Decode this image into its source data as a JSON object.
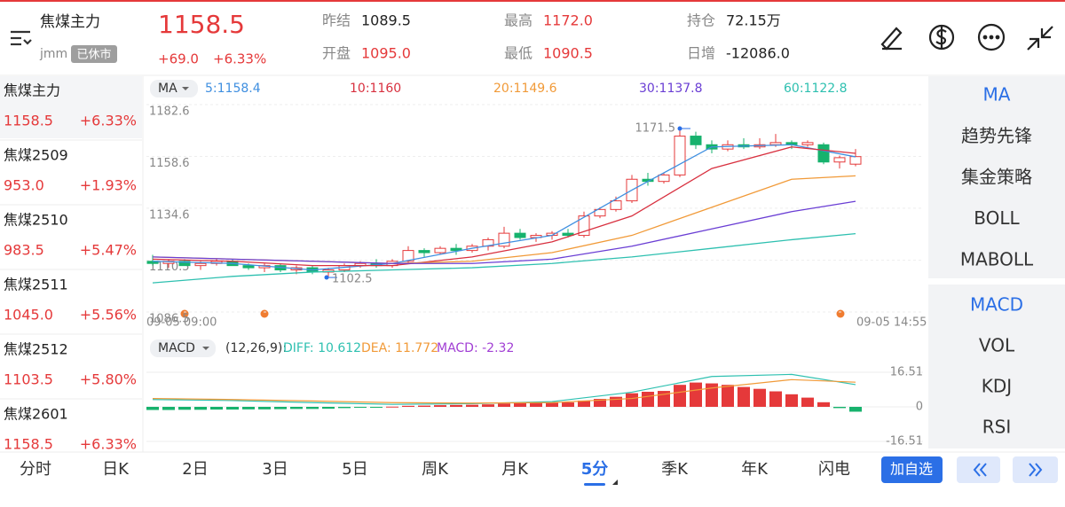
{
  "header": {
    "name": "焦煤主力",
    "code": "jmm",
    "status": "已休市",
    "price": "1158.5",
    "change": "+69.0",
    "change_pct": "+6.33%",
    "stats": [
      {
        "label": "昨结",
        "value": "1089.5"
      },
      {
        "label": "最高",
        "value": "1172.0"
      },
      {
        "label": "持仓",
        "value": "72.15万"
      },
      {
        "label": "开盘",
        "value": "1095.0"
      },
      {
        "label": "最低",
        "value": "1090.5"
      },
      {
        "label": "日增",
        "value": "-12086.0"
      }
    ]
  },
  "contracts": [
    {
      "name": "焦煤主力",
      "price": "1158.5",
      "pct": "+6.33%"
    },
    {
      "name": "焦煤2509",
      "price": "953.0",
      "pct": "+1.93%"
    },
    {
      "name": "焦煤2510",
      "price": "983.5",
      "pct": "+5.47%"
    },
    {
      "name": "焦煤2511",
      "price": "1045.0",
      "pct": "+5.56%"
    },
    {
      "name": "焦煤2512",
      "price": "1103.5",
      "pct": "+5.80%"
    },
    {
      "name": "焦煤2601",
      "price": "1158.5",
      "pct": "+6.33%"
    }
  ],
  "indicators": {
    "main": [
      "MA",
      "趋势先锋",
      "集金策略",
      "BOLL",
      "MABOLL"
    ],
    "sub": [
      "MACD",
      "VOL",
      "KDJ",
      "RSI"
    ]
  },
  "tabs": [
    "分时",
    "日K",
    "2日",
    "3日",
    "5日",
    "周K",
    "月K",
    "5分",
    "季K",
    "年K",
    "闪电"
  ],
  "add_button": "加自选",
  "chart_data": {
    "type": "candlestick",
    "ma_selector": "MA",
    "ma_labels": [
      "5:1158.4",
      "10:1160",
      "20:1149.6",
      "30:1137.8",
      "60:1122.8"
    ],
    "ylim": [
      1086.5,
      1182.6
    ],
    "yticks": [
      1182.6,
      1158.6,
      1134.6,
      1110.5,
      1086.5
    ],
    "start_label": "09-05 09:00",
    "end_label": "09-05 14:55",
    "annotations": [
      {
        "text": "1171.5",
        "value": 1171.5,
        "index": 33
      },
      {
        "text": "1102.5",
        "value": 1102.5,
        "index": 11
      }
    ],
    "candles": [
      {
        "o": 1110,
        "h": 1113,
        "l": 1108,
        "c": 1109
      },
      {
        "o": 1109,
        "h": 1111,
        "l": 1107,
        "c": 1110
      },
      {
        "o": 1110,
        "h": 1111,
        "l": 1108,
        "c": 1108
      },
      {
        "o": 1108,
        "h": 1110,
        "l": 1106,
        "c": 1109
      },
      {
        "o": 1109,
        "h": 1111,
        "l": 1108,
        "c": 1110
      },
      {
        "o": 1110,
        "h": 1111,
        "l": 1108,
        "c": 1108
      },
      {
        "o": 1108,
        "h": 1109,
        "l": 1106,
        "c": 1107
      },
      {
        "o": 1107,
        "h": 1109,
        "l": 1105,
        "c": 1108
      },
      {
        "o": 1108,
        "h": 1109,
        "l": 1105,
        "c": 1106
      },
      {
        "o": 1106,
        "h": 1108,
        "l": 1104,
        "c": 1107
      },
      {
        "o": 1107,
        "h": 1108,
        "l": 1104,
        "c": 1105
      },
      {
        "o": 1105,
        "h": 1107,
        "l": 1102.5,
        "c": 1106
      },
      {
        "o": 1106,
        "h": 1109,
        "l": 1105,
        "c": 1108
      },
      {
        "o": 1108,
        "h": 1110,
        "l": 1107,
        "c": 1109
      },
      {
        "o": 1109,
        "h": 1111,
        "l": 1107,
        "c": 1108
      },
      {
        "o": 1108,
        "h": 1111,
        "l": 1107,
        "c": 1110
      },
      {
        "o": 1110,
        "h": 1117,
        "l": 1109,
        "c": 1115
      },
      {
        "o": 1115,
        "h": 1116,
        "l": 1112,
        "c": 1114
      },
      {
        "o": 1114,
        "h": 1117,
        "l": 1113,
        "c": 1116
      },
      {
        "o": 1116,
        "h": 1118,
        "l": 1113,
        "c": 1115
      },
      {
        "o": 1115,
        "h": 1118,
        "l": 1114,
        "c": 1117
      },
      {
        "o": 1117,
        "h": 1121,
        "l": 1115,
        "c": 1120
      },
      {
        "o": 1117,
        "h": 1126,
        "l": 1116,
        "c": 1123
      },
      {
        "o": 1123,
        "h": 1125,
        "l": 1120,
        "c": 1121
      },
      {
        "o": 1121,
        "h": 1123,
        "l": 1119,
        "c": 1122
      },
      {
        "o": 1122,
        "h": 1124,
        "l": 1120,
        "c": 1123
      },
      {
        "o": 1123,
        "h": 1125,
        "l": 1121,
        "c": 1122
      },
      {
        "o": 1122,
        "h": 1133,
        "l": 1121,
        "c": 1131
      },
      {
        "o": 1131,
        "h": 1135,
        "l": 1130,
        "c": 1134
      },
      {
        "o": 1134,
        "h": 1140,
        "l": 1133,
        "c": 1138
      },
      {
        "o": 1138,
        "h": 1150,
        "l": 1137,
        "c": 1148
      },
      {
        "o": 1148,
        "h": 1151,
        "l": 1145,
        "c": 1147
      },
      {
        "o": 1147,
        "h": 1151,
        "l": 1146,
        "c": 1150
      },
      {
        "o": 1150,
        "h": 1171.5,
        "l": 1149,
        "c": 1168
      },
      {
        "o": 1168,
        "h": 1170,
        "l": 1162,
        "c": 1164
      },
      {
        "o": 1164,
        "h": 1166,
        "l": 1160,
        "c": 1162
      },
      {
        "o": 1162,
        "h": 1166,
        "l": 1161,
        "c": 1164
      },
      {
        "o": 1164,
        "h": 1167,
        "l": 1162,
        "c": 1163
      },
      {
        "o": 1163,
        "h": 1167,
        "l": 1162,
        "c": 1164
      },
      {
        "o": 1164,
        "h": 1169,
        "l": 1163,
        "c": 1165
      },
      {
        "o": 1165,
        "h": 1166,
        "l": 1162,
        "c": 1164
      },
      {
        "o": 1164,
        "h": 1166,
        "l": 1163,
        "c": 1165
      },
      {
        "o": 1164,
        "h": 1165,
        "l": 1155,
        "c": 1156
      },
      {
        "o": 1156,
        "h": 1159,
        "l": 1153,
        "c": 1158
      },
      {
        "o": 1155,
        "h": 1162,
        "l": 1154,
        "c": 1158.5
      }
    ],
    "up_color": "#e5393a",
    "down_color": "#17b26d",
    "ma_x": [
      0,
      5,
      10,
      15,
      20,
      25,
      30,
      35,
      40,
      44
    ],
    "ma": [
      {
        "name": "MA5",
        "color": "#3f8fe0",
        "values": [
          1110,
          1109,
          1106,
          1109,
          1116,
          1122,
          1143,
          1163,
          1164,
          1158.4
        ]
      },
      {
        "name": "MA10",
        "color": "#d8303f",
        "values": [
          1111,
          1110,
          1108,
          1108,
          1112,
          1119,
          1131,
          1153,
          1163,
          1160
        ]
      },
      {
        "name": "MA20",
        "color": "#f19a38",
        "values": [
          1112,
          1111,
          1110,
          1109,
          1110,
          1114,
          1122,
          1135,
          1148,
          1149.6
        ]
      },
      {
        "name": "MA30",
        "color": "#6a3ed4",
        "values": [
          1112,
          1111,
          1110,
          1109,
          1109,
          1111,
          1117,
          1125,
          1133,
          1137.8
        ]
      },
      {
        "name": "MA60",
        "color": "#2ec0b0",
        "values": [
          1100,
          1103,
          1105,
          1106,
          1107,
          1109,
          1112,
          1116,
          1120,
          1122.8
        ]
      }
    ],
    "macd": {
      "title": "MACD",
      "params": "(12,26,9):",
      "diff_label": "DIFF: 10.612",
      "dea_label": "DEA: 11.772",
      "macd_label": "MACD: -2.32",
      "ylim": [
        -16.51,
        16.51
      ],
      "yticks": [
        16.51,
        0,
        -16.51
      ],
      "bars": [
        -1.5,
        -1.5,
        -1.4,
        -1.4,
        -1.3,
        -1.3,
        -1.2,
        -1.2,
        -1.1,
        -1,
        -1,
        -0.9,
        -0.6,
        -0.4,
        -0.2,
        0.1,
        0.5,
        0.6,
        0.8,
        0.9,
        1,
        1.2,
        1.6,
        1.8,
        1.9,
        2,
        2.1,
        3,
        3.8,
        4.8,
        6.5,
        7.2,
        7.6,
        10.5,
        11.6,
        11.2,
        10.5,
        9.5,
        8.6,
        7.4,
        6,
        4.4,
        2.2,
        -0.6,
        -2.32
      ],
      "diff": [
        3.5,
        3,
        2,
        1.2,
        1.5,
        2.5,
        7,
        14.5,
        15.5,
        10.612
      ],
      "dea": [
        4,
        3.5,
        2.8,
        2,
        1.8,
        2,
        4,
        9,
        13,
        11.772
      ],
      "diff_color": "#2ec0b0",
      "dea_color": "#f19a38"
    }
  }
}
